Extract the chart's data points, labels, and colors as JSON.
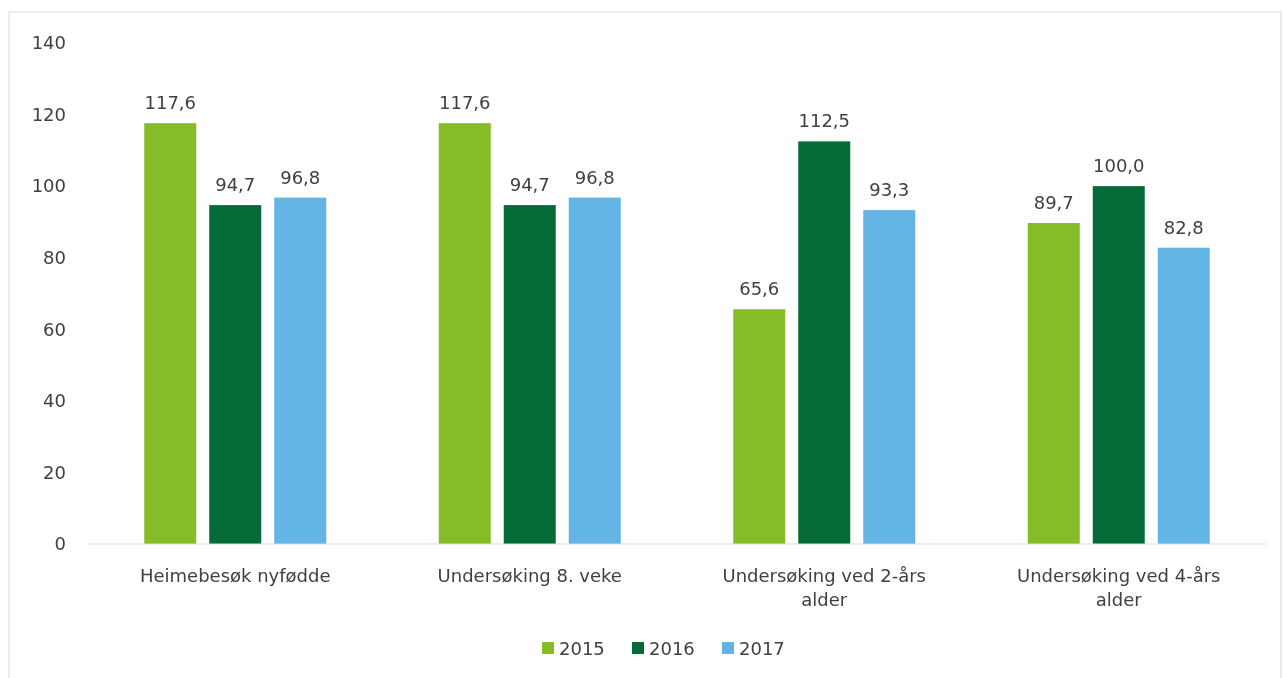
{
  "chart_data": {
    "type": "bar",
    "categories": [
      "Heimebesøk nyfødde",
      "Undersøking 8. veke",
      "Undersøking ved 2-års alder",
      "Undersøking ved 4-års alder"
    ],
    "series": [
      {
        "name": "2015",
        "color": "#86bc25",
        "values": [
          117.6,
          117.6,
          65.6,
          89.7
        ],
        "value_labels": [
          "117,6",
          "117,6",
          "65,6",
          "89,7"
        ]
      },
      {
        "name": "2016",
        "color": "#046a38",
        "values": [
          94.7,
          94.7,
          112.5,
          100.0
        ],
        "value_labels": [
          "94,7",
          "94,7",
          "112,5",
          "100,0"
        ]
      },
      {
        "name": "2017",
        "color": "#62b5e5",
        "values": [
          96.8,
          96.8,
          93.3,
          82.8
        ],
        "value_labels": [
          "96,8",
          "96,8",
          "93,3",
          "82,8"
        ]
      }
    ],
    "ylim": [
      0,
      140
    ],
    "yticks": [
      0,
      20,
      40,
      60,
      80,
      100,
      120,
      140
    ],
    "grid": false,
    "legend": "bottom"
  }
}
